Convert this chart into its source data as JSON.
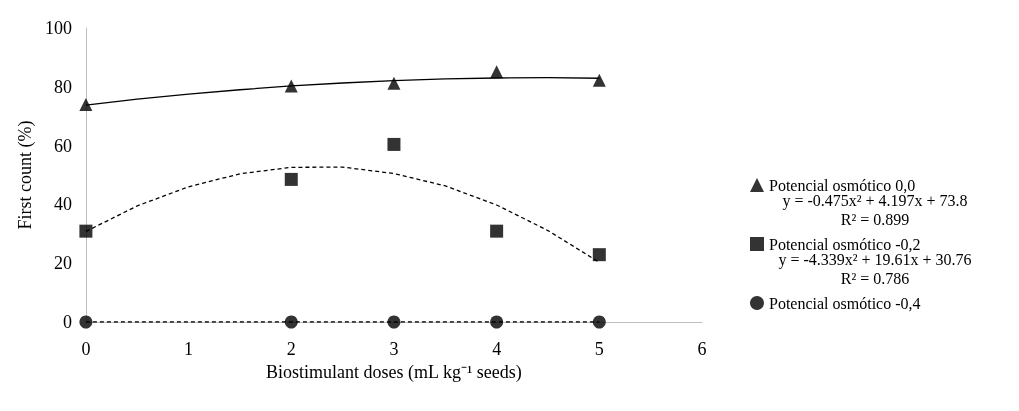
{
  "chart_data": {
    "type": "scatter",
    "xlabel": "Biostimulant doses (mL kg⁻¹ seeds)",
    "ylabel": "First count (%)",
    "xlim": [
      0,
      6
    ],
    "xticks": [
      0,
      1,
      2,
      3,
      4,
      5,
      6
    ],
    "ylim": [
      0,
      100
    ],
    "yticks": [
      0,
      20,
      40,
      60,
      80,
      100
    ],
    "grid": false,
    "legend": "right",
    "annotations": [
      "y = -0.475x² + 4.197x + 73.8",
      "R² = 0.899",
      "y = -4.339x² + 19.61x + 30.76",
      "R² = 0.786"
    ],
    "series": [
      {
        "name": "Potencial osmótico 0,0",
        "marker": "triangle",
        "color": "#000000",
        "x": [
          0,
          2,
          3,
          4,
          5
        ],
        "values": [
          74,
          80.3,
          81.2,
          85.1,
          82.2
        ]
      },
      {
        "name": "Potencial osmótico -0,2",
        "marker": "square",
        "color": "#000000",
        "x": [
          0,
          2,
          3,
          4,
          5
        ],
        "values": [
          30.9,
          48.5,
          60.4,
          30.9,
          22.9
        ]
      },
      {
        "name": "Potencial osmótico -0,4",
        "marker": "circle",
        "color": "#000000",
        "x": [
          0,
          2,
          3,
          4,
          5
        ],
        "values": [
          0,
          0,
          0,
          0,
          0
        ]
      },
      {
        "type": "line",
        "marker": "none",
        "line_style": "solid",
        "color": "#000000",
        "x": [
          0,
          0.5,
          1,
          1.5,
          2,
          2.5,
          3,
          3.5,
          4,
          4.5,
          5
        ],
        "values": [
          73.8,
          75.8,
          77.5,
          79.0,
          80.3,
          81.3,
          82.1,
          82.7,
          83.0,
          83.1,
          82.9
        ]
      },
      {
        "type": "line",
        "marker": "none",
        "line_style": "dashed",
        "color": "#000000",
        "x": [
          0,
          0.5,
          1,
          1.5,
          2,
          2.5,
          3,
          3.5,
          4,
          4.5,
          5
        ],
        "values": [
          30.8,
          39.5,
          46.0,
          50.4,
          52.6,
          52.7,
          50.5,
          46.3,
          39.8,
          31.1,
          20.3
        ]
      },
      {
        "type": "line",
        "marker": "none",
        "line_style": "dashed",
        "color": "#000000",
        "x": [
          0,
          5
        ],
        "values": [
          0,
          0
        ]
      }
    ]
  }
}
